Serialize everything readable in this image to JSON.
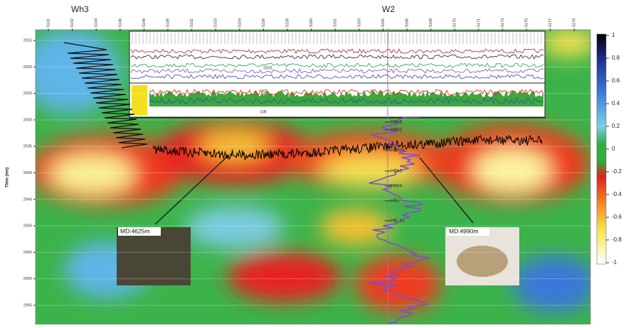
{
  "wells": [
    {
      "name": "Wh3"
    },
    {
      "name": "W2"
    }
  ],
  "trace_labels": [
    "5141",
    "5142",
    "5144",
    "5146",
    "5148",
    "5149",
    "5151",
    "5153",
    "5154",
    "5156",
    "5158",
    "5160",
    "5161",
    "5163",
    "5165",
    "5166",
    "5168",
    "5170",
    "5171",
    "5173",
    "5175",
    "5177",
    "5178"
  ],
  "y_axis": {
    "label": "Time (ms)",
    "ticks": [
      "2915",
      "2920",
      "2925",
      "2930",
      "2935",
      "2940",
      "2945",
      "2950",
      "2955",
      "2960",
      "2965"
    ]
  },
  "colorbar": {
    "ticks": [
      "1",
      "0.8",
      "0.6",
      "0.4",
      "0.2",
      "0",
      "-0.2",
      "-0.4",
      "-0.6",
      "-0.8",
      "-1"
    ]
  },
  "log_labels": {
    "sgs": "SGS",
    "rt": "RT",
    "gr": "GR"
  },
  "horizons": [
    "HBb1",
    "HBb2",
    "HBb2s",
    "HBb3",
    "HBb4",
    "HBs",
    "HB_1s"
  ],
  "samples": [
    {
      "label": "MD:4625m"
    },
    {
      "label": "MD:4990m"
    }
  ]
}
